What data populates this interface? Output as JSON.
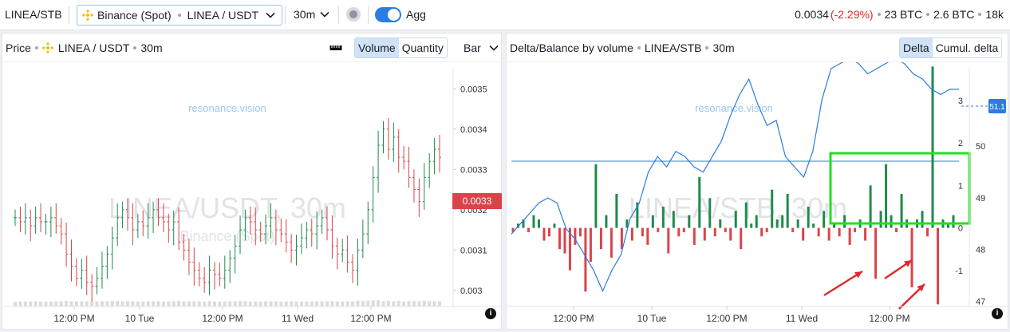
{
  "topbar": {
    "pair": "LINEA/STB",
    "exchange": "Binance (Spot)",
    "symbol": "LINEA / USDT",
    "timeframe": "30m",
    "agg_label": "Agg",
    "agg_on": true,
    "price": "0.0034",
    "change": "(-2.29%)",
    "stat1": "23 BTC",
    "stat2": "2.6 BTC",
    "stat3": "18k"
  },
  "left_panel": {
    "title": "Price",
    "symbol": "LINEA / USDT",
    "timeframe": "30m",
    "tab_volume": "Volume",
    "tab_quantity": "Quantity",
    "chart_type": "Bar",
    "watermark_site": "resonance.vision",
    "watermark_main": "LINEA/USDT, 30m",
    "watermark_sub": "Binance (Spot)",
    "price_tag": "0.0033",
    "y_ticks": [
      "0.0035",
      "0.0034",
      "0.0033",
      "0.0032",
      "0.0031",
      "0.003"
    ],
    "x_ticks": [
      "12:00 PM",
      "10 Tue",
      "12:00 PM",
      "11 Wed",
      "12:00 PM"
    ]
  },
  "right_panel": {
    "title": "Delta/Balance by volume",
    "symbol": "LINEA/STB",
    "timeframe": "30m",
    "tab_delta": "Delta",
    "tab_cumul": "Cumul. delta",
    "watermark_site": "resonance.vision",
    "watermark_main": "LINEA/STB, 30m",
    "balance_tag": "51.1",
    "y_ticks_left": [
      "3",
      "2",
      "1",
      "0",
      "-1"
    ],
    "y_ticks_right": [
      "50",
      "49",
      "48",
      "47"
    ],
    "x_ticks": [
      "12:00 PM",
      "10 Tue",
      "12:00 PM",
      "11 Wed",
      "12:00 PM"
    ],
    "highlight_color": "#22e01f",
    "arrow_color": "#e0292b"
  },
  "chart_data": [
    {
      "type": "bar",
      "title": "Price",
      "ylim": [
        0.00296,
        0.00355
      ],
      "note": "OHLC bars LINEA/USDT 30m; closes approximated",
      "series": [
        {
          "name": "close",
          "values": [
            0.00318,
            0.00317,
            0.00318,
            0.00316,
            0.00318,
            0.00317,
            0.00317,
            0.00318,
            0.00316,
            0.00314,
            0.00309,
            0.00306,
            0.00303,
            0.00305,
            0.00302,
            0.00301,
            0.00303,
            0.00306,
            0.00309,
            0.00313,
            0.00318,
            0.0032,
            0.00318,
            0.00315,
            0.00317,
            0.00316,
            0.00318,
            0.0032,
            0.00318,
            0.00317,
            0.00315,
            0.00317,
            0.00312,
            0.0031,
            0.00307,
            0.00305,
            0.00303,
            0.00302,
            0.00305,
            0.00304,
            0.00303,
            0.00305,
            0.00308,
            0.00311,
            0.00315,
            0.00318,
            0.00317,
            0.00315,
            0.00314,
            0.00316,
            0.00318,
            0.00315,
            0.00314,
            0.00312,
            0.0031,
            0.00311,
            0.00313,
            0.00315,
            0.00314,
            0.00316,
            0.00318,
            0.00315,
            0.00311,
            0.00309,
            0.0031,
            0.00307,
            0.00305,
            0.0031,
            0.00314,
            0.0032,
            0.00328,
            0.00336,
            0.0034,
            0.00335,
            0.00338,
            0.00333,
            0.00332,
            0.00328,
            0.00325,
            0.00322,
            0.00328,
            0.00332,
            0.00335,
            0.00333
          ]
        }
      ]
    },
    {
      "type": "bar",
      "title": "Delta/Balance by volume",
      "ylim": [
        -1.85,
        3.75
      ],
      "note": "Delta bars plus cumulative balance line (right axis 46.9–51.5)",
      "series": [
        {
          "name": "delta",
          "values": [
            -0.1,
            0.1,
            0.2,
            -0.1,
            0.3,
            0.2,
            -0.3,
            -0.2,
            0.1,
            -0.5,
            -0.6,
            -1.0,
            -0.4,
            -0.2,
            -1.5,
            -0.8,
            1.5,
            -0.5,
            0.3,
            -0.7,
            0.8,
            -0.5,
            0.2,
            -0.3,
            0.6,
            -0.2,
            -0.4,
            0.3,
            -0.1,
            0.5,
            -0.6,
            0.4,
            -0.2,
            -0.1,
            0.3,
            -0.4,
            1.2,
            -0.3,
            0.7,
            -0.2,
            0.2,
            -0.1,
            -0.3,
            0.4,
            -0.5,
            0.6,
            0.1,
            0.3,
            -0.2,
            -0.1,
            0.9,
            0.2,
            0.3,
            0.8,
            -0.1,
            0.2,
            -0.3,
            0.5,
            0.1,
            -0.2,
            0.4,
            -0.3,
            0.1,
            -0.2,
            0.3,
            -0.4,
            -0.1,
            0.2,
            -0.3,
            1.0,
            -1.2,
            0.4,
            1.5,
            0.3,
            -0.1,
            0.8,
            0.2,
            -1.4,
            0.2,
            0.4,
            -0.2,
            3.8,
            -1.8,
            0.2,
            0.1,
            0.3
          ]
        },
        {
          "name": "balance",
          "values": [
            48.3,
            48.5,
            48.7,
            48.9,
            49.0,
            48.9,
            48.4,
            48.2,
            47.9,
            47.6,
            47.2,
            47.6,
            47.9,
            48.6,
            48.9,
            49.5,
            49.8,
            49.6,
            49.9,
            49.8,
            49.6,
            49.5,
            49.8,
            50.1,
            50.6,
            51.0,
            51.3,
            50.8,
            50.4,
            50.5,
            49.8,
            49.6,
            49.4,
            49.9,
            50.9,
            51.5,
            51.6,
            51.7,
            51.6,
            51.4,
            51.5,
            51.6,
            51.7,
            51.6,
            51.4,
            51.3,
            51.1,
            51.0,
            51.1,
            51.1
          ]
        }
      ]
    }
  ]
}
